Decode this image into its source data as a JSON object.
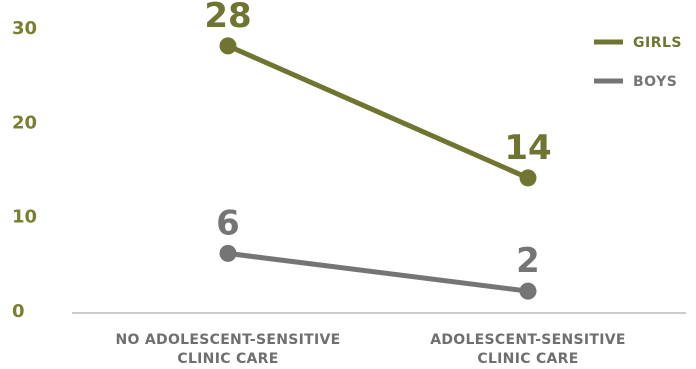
{
  "chart_data": {
    "type": "line",
    "categories": [
      [
        "NO ADOLESCENT-SENSITIVE",
        "CLINIC CARE"
      ],
      [
        "ADOLESCENT-SENSITIVE",
        "CLINIC CARE"
      ]
    ],
    "series": [
      {
        "name": "GIRLS",
        "values": [
          28,
          14
        ],
        "value_labels": [
          "28",
          "14"
        ],
        "color": "#6f7530"
      },
      {
        "name": "BOYS",
        "values": [
          6,
          2
        ],
        "value_labels": [
          "6",
          "2"
        ],
        "color": "#757575"
      }
    ],
    "yticks": [
      "0",
      "10",
      "20",
      "30"
    ],
    "ylim": [
      0,
      30
    ],
    "ytick_color": "#7a7f2f",
    "legend_position": "top-right",
    "grid": false
  }
}
